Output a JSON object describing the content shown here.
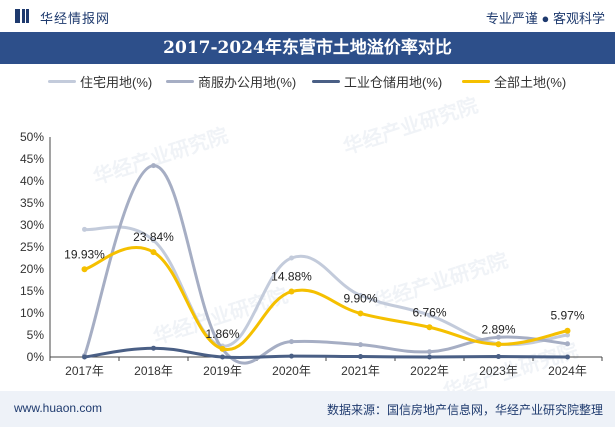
{
  "header": {
    "brand": "华经情报网",
    "tagline": "专业严谨 ● 客观科学"
  },
  "watermark": "华经产业研究院",
  "footer": {
    "url": "www.huaon.com",
    "source": "数据来源：国信房地产信息网，华经产业研究院整理"
  },
  "colors": {
    "title_bg": "#2d4f8a",
    "footer_bg": "#eef2f8"
  },
  "chart_data": {
    "type": "line",
    "title": "2017-2024年东营市土地溢价率对比",
    "categories": [
      "2017年",
      "2018年",
      "2019年",
      "2020年",
      "2021年",
      "2022年",
      "2023年",
      "2024年"
    ],
    "y_ticks": [
      "0%",
      "5%",
      "10%",
      "15%",
      "20%",
      "25%",
      "30%",
      "35%",
      "40%",
      "45%",
      "50%"
    ],
    "ylim": [
      0,
      50
    ],
    "smooth": true,
    "legend_position": "top",
    "series": [
      {
        "name": "住宅用地(%)",
        "color": "#c3cbdb",
        "values": [
          29.0,
          26.5,
          2.5,
          22.5,
          14.0,
          9.5,
          3.0,
          5.0
        ],
        "labels": []
      },
      {
        "name": "商服办公用地(%)",
        "color": "#a6aec4",
        "values": [
          0.3,
          43.5,
          1.8,
          3.5,
          2.8,
          1.2,
          4.5,
          3.0
        ],
        "labels": []
      },
      {
        "name": "工业仓储用地(%)",
        "color": "#4a5f85",
        "values": [
          0.0,
          2.0,
          0.0,
          0.2,
          0.1,
          0.0,
          0.1,
          0.0
        ],
        "labels": []
      },
      {
        "name": "全部土地(%)",
        "color": "#f5c000",
        "values": [
          19.93,
          23.84,
          1.86,
          14.88,
          9.9,
          6.76,
          2.89,
          5.97
        ],
        "labels": [
          "19.93%",
          "23.84%",
          "1.86%",
          "14.88%",
          "9.90%",
          "6.76%",
          "2.89%",
          "5.97%"
        ]
      }
    ]
  }
}
